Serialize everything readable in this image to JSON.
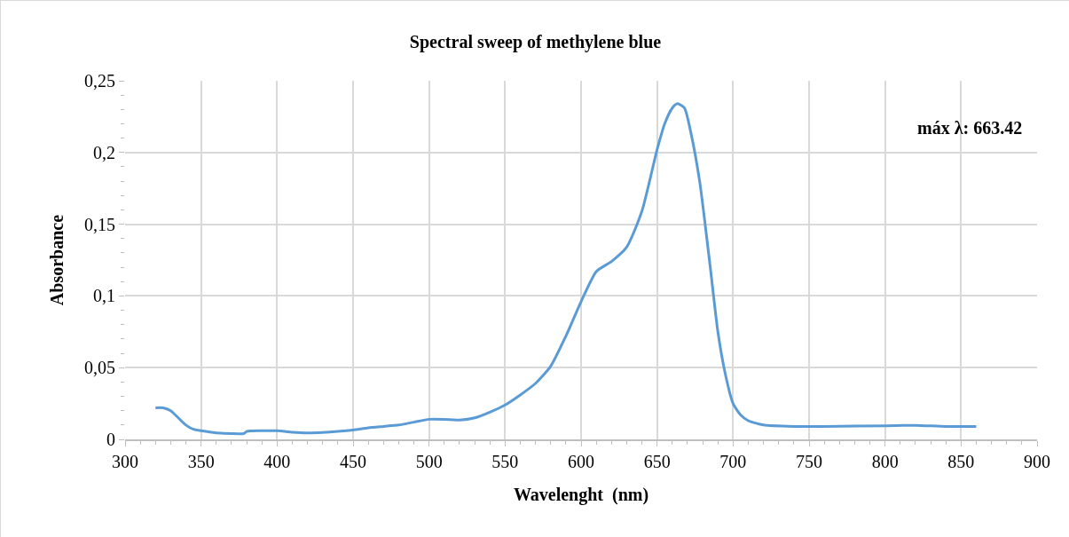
{
  "chart_data": {
    "type": "line",
    "title": "Spectral sweep of methylene blue",
    "xlabel": "Wavelenght  (nm)",
    "ylabel": "Absorbance",
    "annotations": [
      "máx λ: 663.42"
    ],
    "x": [
      320,
      325,
      330,
      335,
      340,
      345,
      350,
      360,
      370,
      378,
      380,
      390,
      400,
      410,
      420,
      430,
      440,
      450,
      460,
      470,
      480,
      490,
      500,
      510,
      520,
      530,
      540,
      550,
      560,
      570,
      580,
      590,
      600,
      610,
      620,
      630,
      640,
      650,
      655,
      660,
      663.42,
      668,
      672,
      678,
      685,
      690,
      695,
      700,
      705,
      710,
      720,
      740,
      760,
      800,
      820,
      840,
      860
    ],
    "series": [
      {
        "color": "#5b9bd5",
        "values": [
          0.022,
          0.022,
          0.02,
          0.015,
          0.01,
          0.007,
          0.006,
          0.0045,
          0.004,
          0.004,
          0.0055,
          0.006,
          0.006,
          0.005,
          0.0045,
          0.0048,
          0.0055,
          0.0065,
          0.008,
          0.009,
          0.01,
          0.012,
          0.014,
          0.014,
          0.0135,
          0.015,
          0.019,
          0.024,
          0.031,
          0.039,
          0.051,
          0.072,
          0.096,
          0.117,
          0.124,
          0.134,
          0.159,
          0.202,
          0.22,
          0.231,
          0.234,
          0.231,
          0.215,
          0.18,
          0.12,
          0.075,
          0.045,
          0.025,
          0.017,
          0.013,
          0.01,
          0.009,
          0.009,
          0.0095,
          0.0098,
          0.009,
          0.009
        ]
      }
    ],
    "xlim": [
      300,
      900
    ],
    "xticks": [
      300,
      350,
      400,
      450,
      500,
      550,
      600,
      650,
      700,
      750,
      800,
      850,
      900
    ],
    "ylim": [
      0,
      0.25
    ],
    "yticks": [
      0,
      {
        "value": 0.05,
        "label": "0,05"
      },
      {
        "value": 0.1,
        "label": "0,1"
      },
      {
        "value": 0.15,
        "label": "0,15"
      },
      {
        "value": 0.2,
        "label": "0,2"
      },
      {
        "value": 0.25,
        "label": "0,25"
      }
    ],
    "grid": true,
    "marker": "none",
    "line_style": "solid"
  }
}
